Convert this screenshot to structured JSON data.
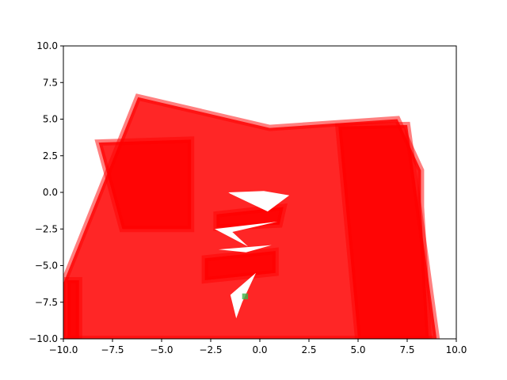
{
  "chart_data": {
    "type": "area",
    "title": "",
    "xlabel": "",
    "ylabel": "",
    "xlim": [
      -10,
      10
    ],
    "ylim": [
      -10,
      10
    ],
    "x_ticks": [
      -10,
      -7.5,
      -5,
      -2.5,
      0,
      2.5,
      5,
      7.5,
      10
    ],
    "y_ticks": [
      -10,
      -7.5,
      -5,
      -2.5,
      0,
      2.5,
      5,
      7.5,
      10
    ],
    "x_tick_labels": [
      "−10.0",
      "−7.5",
      "−5.0",
      "−2.5",
      "0.0",
      "2.5",
      "5.0",
      "7.5",
      "10.0"
    ],
    "y_tick_labels": [
      "−10.0",
      "−7.5",
      "−5.0",
      "−2.5",
      "0.0",
      "2.5",
      "5.0",
      "7.5",
      "10.0"
    ],
    "grid": false,
    "legend": false,
    "colors": {
      "fill": "#ff0000",
      "edge": "#ff0000",
      "green_patch": "#3cb44b"
    },
    "series": [
      {
        "polygons": [
          [
            [
              -10,
              -10
            ],
            [
              -10,
              -6.2
            ],
            [
              -6.2,
              6.5
            ],
            [
              0.5,
              4.4
            ],
            [
              7,
              5
            ],
            [
              8.2,
              1.5
            ],
            [
              8.2,
              -1
            ],
            [
              8.6,
              -10
            ]
          ],
          [
            [
              -8.2,
              3.4
            ],
            [
              -3.5,
              3.6
            ],
            [
              -3.5,
              -2.5
            ],
            [
              -7,
              -2.5
            ]
          ],
          [
            [
              4,
              4.5
            ],
            [
              7.5,
              4.6
            ],
            [
              9,
              -10
            ],
            [
              5,
              -10
            ]
          ],
          [
            [
              -2.2,
              -1.5
            ],
            [
              1.2,
              -1
            ],
            [
              1,
              -2.2
            ],
            [
              -2.2,
              -2.4
            ]
          ],
          [
            [
              -2.8,
              -4.5
            ],
            [
              0.8,
              -4
            ],
            [
              0.8,
              -5.5
            ],
            [
              -2.8,
              -6
            ]
          ],
          [
            [
              -9.8,
              -10
            ],
            [
              -9.8,
              -6
            ],
            [
              -9.2,
              -6
            ],
            [
              -9.2,
              -10
            ]
          ]
        ]
      }
    ],
    "holes": [
      [
        [
          -1.6,
          0
        ],
        [
          0.2,
          0.1
        ],
        [
          1.5,
          -0.2
        ],
        [
          0.4,
          -1.3
        ],
        [
          -1.5,
          -0.1
        ]
      ],
      [
        [
          -2.3,
          -2.5
        ],
        [
          0.9,
          -2.0
        ],
        [
          -1.4,
          -2.7
        ],
        [
          -0.6,
          -3.7
        ]
      ],
      [
        [
          -2.1,
          -3.9
        ],
        [
          0.6,
          -3.6
        ],
        [
          -0.7,
          -4.1
        ]
      ],
      [
        [
          -1.5,
          -7.0
        ],
        [
          -0.2,
          -5.5
        ],
        [
          -0.9,
          -7.5
        ],
        [
          -1.2,
          -8.6
        ]
      ]
    ],
    "green_marks": [
      [
        [
          -0.9,
          -6.9
        ],
        [
          -0.6,
          -6.9
        ],
        [
          -0.6,
          -7.3
        ],
        [
          -0.9,
          -7.3
        ]
      ]
    ]
  }
}
